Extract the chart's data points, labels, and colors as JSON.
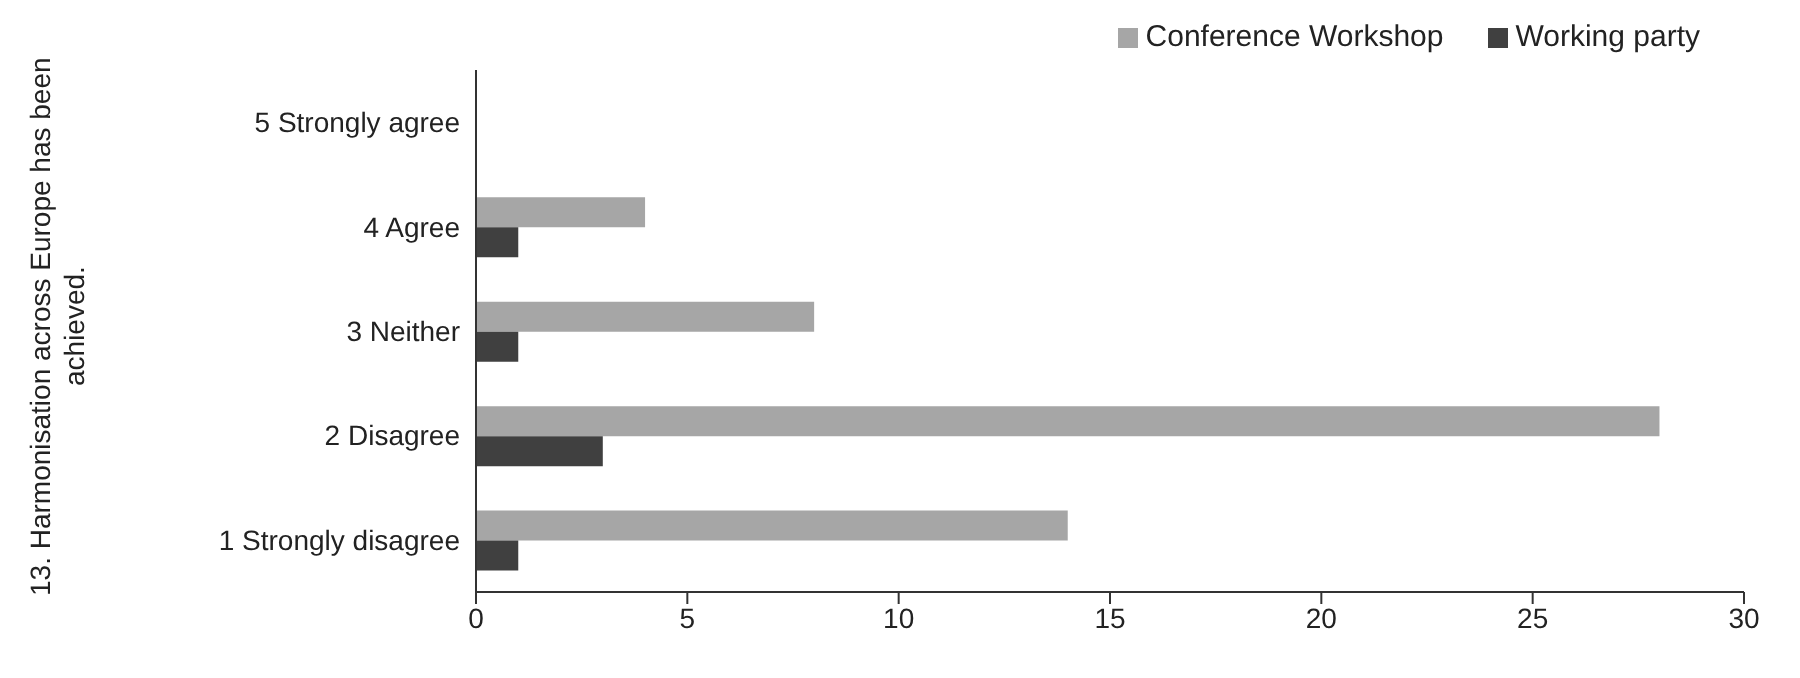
{
  "chart_data": {
    "type": "bar",
    "orientation": "horizontal",
    "ylabel": "13. Harmonisation across Europe has been achieved.",
    "categories": [
      "5 Strongly agree",
      "4 Agree",
      "3 Neither",
      "2 Disagree",
      "1 Strongly disagree"
    ],
    "series": [
      {
        "name": "Conference Workshop",
        "color": "#a6a6a6",
        "values": [
          0,
          4,
          8,
          28,
          14
        ]
      },
      {
        "name": "Working party",
        "color": "#404040",
        "values": [
          0,
          1,
          1,
          3,
          1
        ]
      }
    ],
    "xlim": [
      0,
      30
    ],
    "xticks": [
      0,
      5,
      10,
      15,
      20,
      25,
      30
    ],
    "legend": "top right"
  }
}
